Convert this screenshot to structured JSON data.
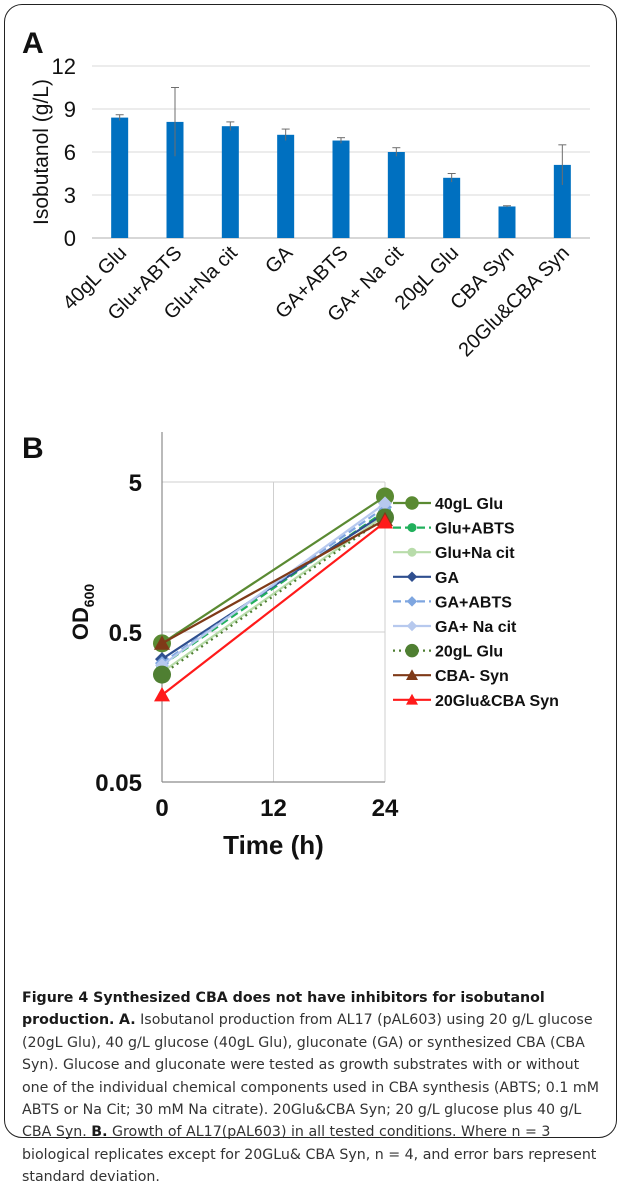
{
  "panel_a_label": "A",
  "panel_b_label": "B",
  "chart_data": [
    {
      "type": "bar",
      "panel": "A",
      "ylabel": "Isobutanol (g/L)",
      "ylim": [
        0,
        12
      ],
      "yticks": [
        "0",
        "3",
        "6",
        "9",
        "12"
      ],
      "grid": true,
      "bar_color": "#0070c0",
      "categories": [
        "40gL Glu",
        "Glu+ABTS",
        "Glu+Na cit",
        "GA",
        "GA+ABTS",
        "GA+ Na cit",
        "20gL Glu",
        "CBA Syn",
        "20Glu&CBA Syn"
      ],
      "values": [
        8.4,
        8.1,
        7.8,
        7.2,
        6.8,
        6.0,
        4.2,
        2.2,
        5.1
      ],
      "errors": [
        0.2,
        2.4,
        0.3,
        0.4,
        0.2,
        0.3,
        0.3,
        0.05,
        1.4
      ]
    },
    {
      "type": "line",
      "panel": "B",
      "ylabel": "OD",
      "ylabel_sub": "600",
      "xlabel": "Time (h)",
      "yscale": "log",
      "ylim": [
        0.05,
        5
      ],
      "yticks": [
        "0.05",
        "0.5",
        "5"
      ],
      "xticks": [
        "0",
        "12",
        "24"
      ],
      "xlim": [
        0,
        24
      ],
      "legend_position": "right",
      "x": [
        0,
        24
      ],
      "series": [
        {
          "name": "40gL Glu",
          "values": [
            0.42,
            4.0
          ],
          "color": "#5a8a32",
          "dash": "",
          "marker": "circle-large"
        },
        {
          "name": "Glu+ABTS",
          "values": [
            0.3,
            3.2
          ],
          "color": "#21b05c",
          "dash": "8,4",
          "marker": "circle"
        },
        {
          "name": "Glu+Na cit",
          "values": [
            0.27,
            3.0
          ],
          "color": "#b8dcaa",
          "dash": "",
          "marker": "circle"
        },
        {
          "name": "GA",
          "values": [
            0.33,
            3.1
          ],
          "color": "#2f4f8f",
          "dash": "",
          "marker": "diamond"
        },
        {
          "name": "GA+ABTS",
          "values": [
            0.31,
            3.4
          ],
          "color": "#7ea6e0",
          "dash": "8,4",
          "marker": "diamond"
        },
        {
          "name": "GA+ Na cit",
          "values": [
            0.3,
            3.6
          ],
          "color": "#b7c9ee",
          "dash": "",
          "marker": "diamond"
        },
        {
          "name": "20gL Glu",
          "values": [
            0.26,
            2.9
          ],
          "color": "#4f7f32",
          "dash": "2,4",
          "marker": "circle-large"
        },
        {
          "name": "CBA- Syn",
          "values": [
            0.42,
            2.8
          ],
          "color": "#7f3a18",
          "dash": "",
          "marker": "triangle"
        },
        {
          "name": "20Glu&CBA Syn",
          "values": [
            0.19,
            2.7
          ],
          "color": "#ff1a1a",
          "dash": "",
          "marker": "triangle"
        }
      ]
    }
  ],
  "caption": {
    "title": "Figure 4 Synthesized CBA does not have inhibitors for isobutanol production.",
    "a_label": "A.",
    "a_text": " Isobutanol production from AL17 (pAL603) using 20 g/L glucose (20gL Glu), 40 g/L glucose (40gL Glu), gluconate (GA) or synthesized CBA (CBA Syn). Glucose and gluconate were tested as growth substrates with or without one of the individual chemical components used in CBA synthesis (ABTS; 0.1 mM ABTS or Na Cit; 30 mM Na citrate). 20Glu&CBA Syn; 20 g/L glucose plus 40 g/L CBA Syn.",
    "b_label": "B.",
    "b_text": " Growth of AL17(pAL603) in all tested conditions. Where n = 3 biological replicates except for 20GLu& CBA Syn, n = 4, and error bars represent standard deviation."
  }
}
